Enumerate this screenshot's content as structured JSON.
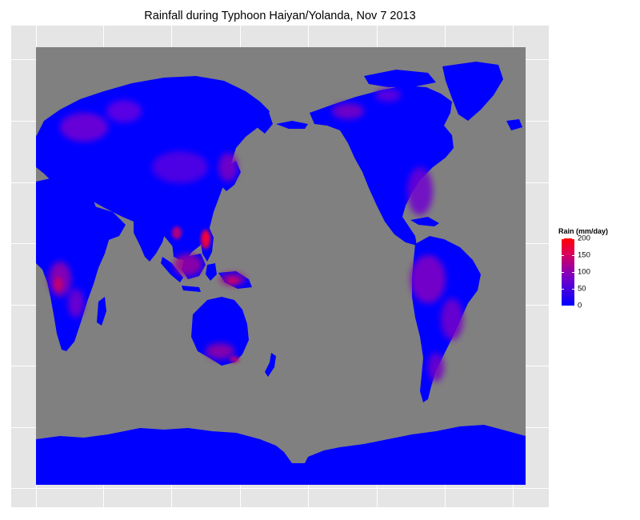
{
  "title": "Rainfall during Typhoon Haiyan/Yolanda, Nov 7 2013",
  "legend": {
    "title": "Rain (mm/day)",
    "ticks": [
      {
        "value": 0,
        "label": "0"
      },
      {
        "value": 50,
        "label": "50"
      },
      {
        "value": 100,
        "label": "100"
      },
      {
        "value": 150,
        "label": "150"
      },
      {
        "value": 200,
        "label": "200"
      }
    ],
    "range": [
      0,
      200
    ],
    "low_color": "#0000ff",
    "high_color": "#ff0000"
  },
  "colors": {
    "panel_background": "#e5e5e5",
    "ocean": "#808080",
    "land_base": "#0000ff",
    "gridline": "#ffffff"
  },
  "map": {
    "projection": "pacific-centered equirectangular",
    "variable": "daily rainfall over land",
    "date": "Nov 7 2013"
  }
}
